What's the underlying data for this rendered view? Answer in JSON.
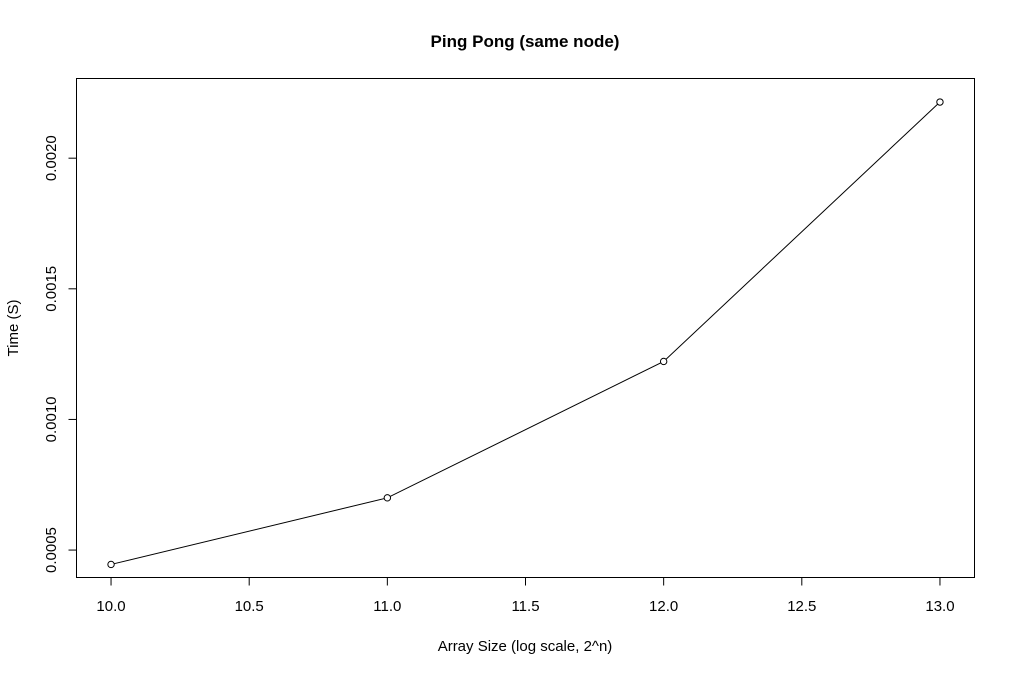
{
  "chart_data": {
    "type": "line",
    "title": "Ping Pong (same node)",
    "xlabel": "Array Size (log scale, 2^n)",
    "ylabel": "Time (S)",
    "x": [
      10,
      11,
      12,
      13
    ],
    "series": [
      {
        "values": [
          0.000445,
          0.0007,
          0.001222,
          0.002215
        ]
      }
    ],
    "xlim": [
      9.875,
      13.125
    ],
    "ylim": [
      0.000395,
      0.002305
    ],
    "x_ticks": [
      "10.0",
      "10.5",
      "11.0",
      "11.5",
      "12.0",
      "12.5",
      "13.0"
    ],
    "y_ticks": [
      "0.0005",
      "0.0010",
      "0.0015",
      "0.0020"
    ],
    "markers": "open-circle",
    "grid": false,
    "legend": "none",
    "colors": {
      "line": "#000000",
      "axis": "#000000",
      "background": "#ffffff"
    }
  }
}
